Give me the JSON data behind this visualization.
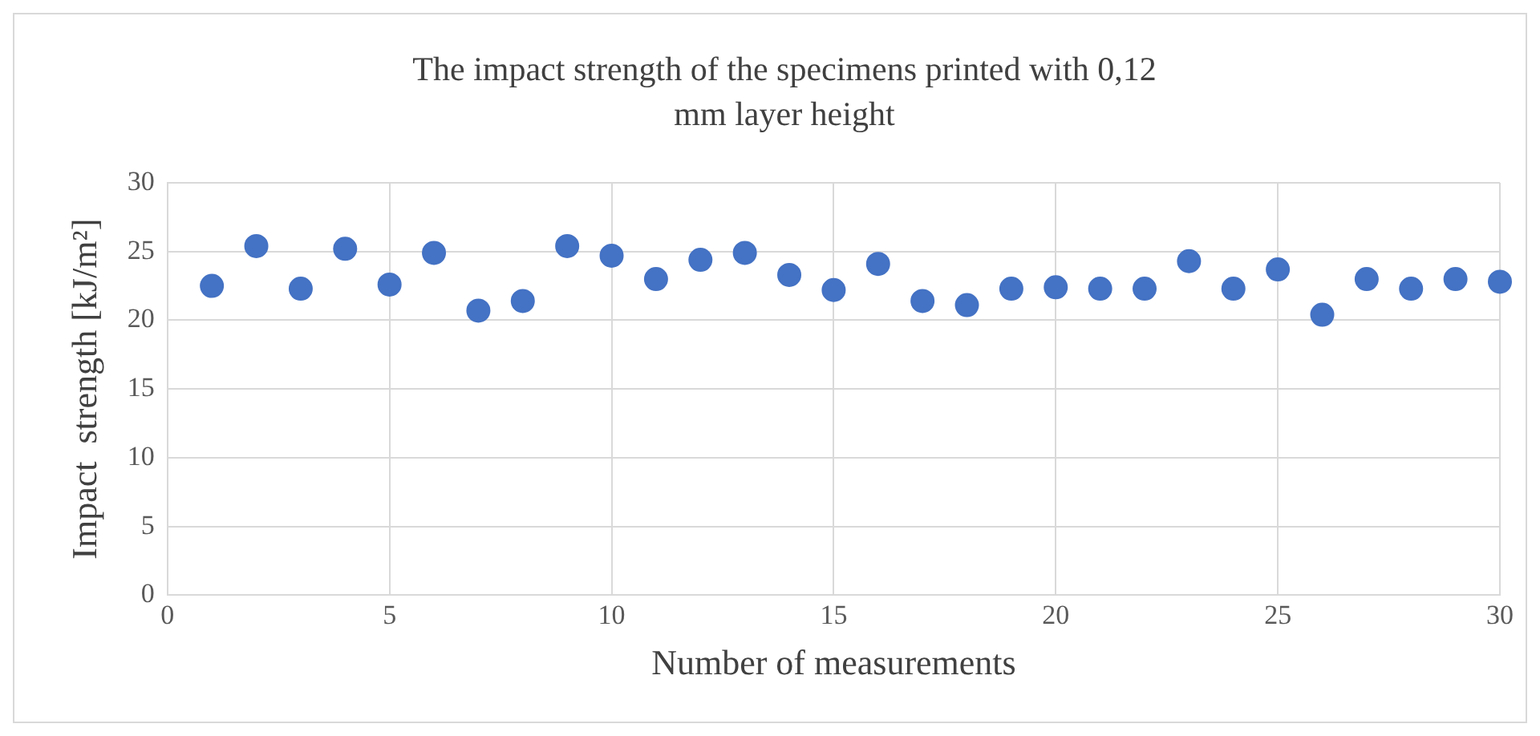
{
  "chart_data": {
    "type": "scatter",
    "title": "The impact strength of the specimens printed with 0,12 mm layer height",
    "xlabel": "Number of measurements",
    "ylabel": "Impact  strength [kJ/m²]",
    "x": [
      1,
      2,
      3,
      4,
      5,
      6,
      7,
      8,
      9,
      10,
      11,
      12,
      13,
      14,
      15,
      16,
      17,
      18,
      19,
      20,
      21,
      22,
      23,
      24,
      25,
      26,
      27,
      28,
      29,
      30
    ],
    "series": [
      {
        "color": "#4472c4",
        "values": [
          22.5,
          25.4,
          22.3,
          25.2,
          22.6,
          24.9,
          20.7,
          21.4,
          25.4,
          24.7,
          23.0,
          24.4,
          24.9,
          23.3,
          22.2,
          24.1,
          21.4,
          21.1,
          22.3,
          22.4,
          22.3,
          22.3,
          24.3,
          22.3,
          23.7,
          20.4,
          23.0,
          22.3,
          23.0,
          22.8
        ]
      }
    ],
    "xlim": [
      0,
      30
    ],
    "xticks": [
      0,
      5,
      10,
      15,
      20,
      25,
      30
    ],
    "ylim": [
      0,
      30
    ],
    "yticks": [
      0,
      5,
      10,
      15,
      20,
      25,
      30
    ],
    "grid": true,
    "legend": false,
    "marker": "circle"
  }
}
